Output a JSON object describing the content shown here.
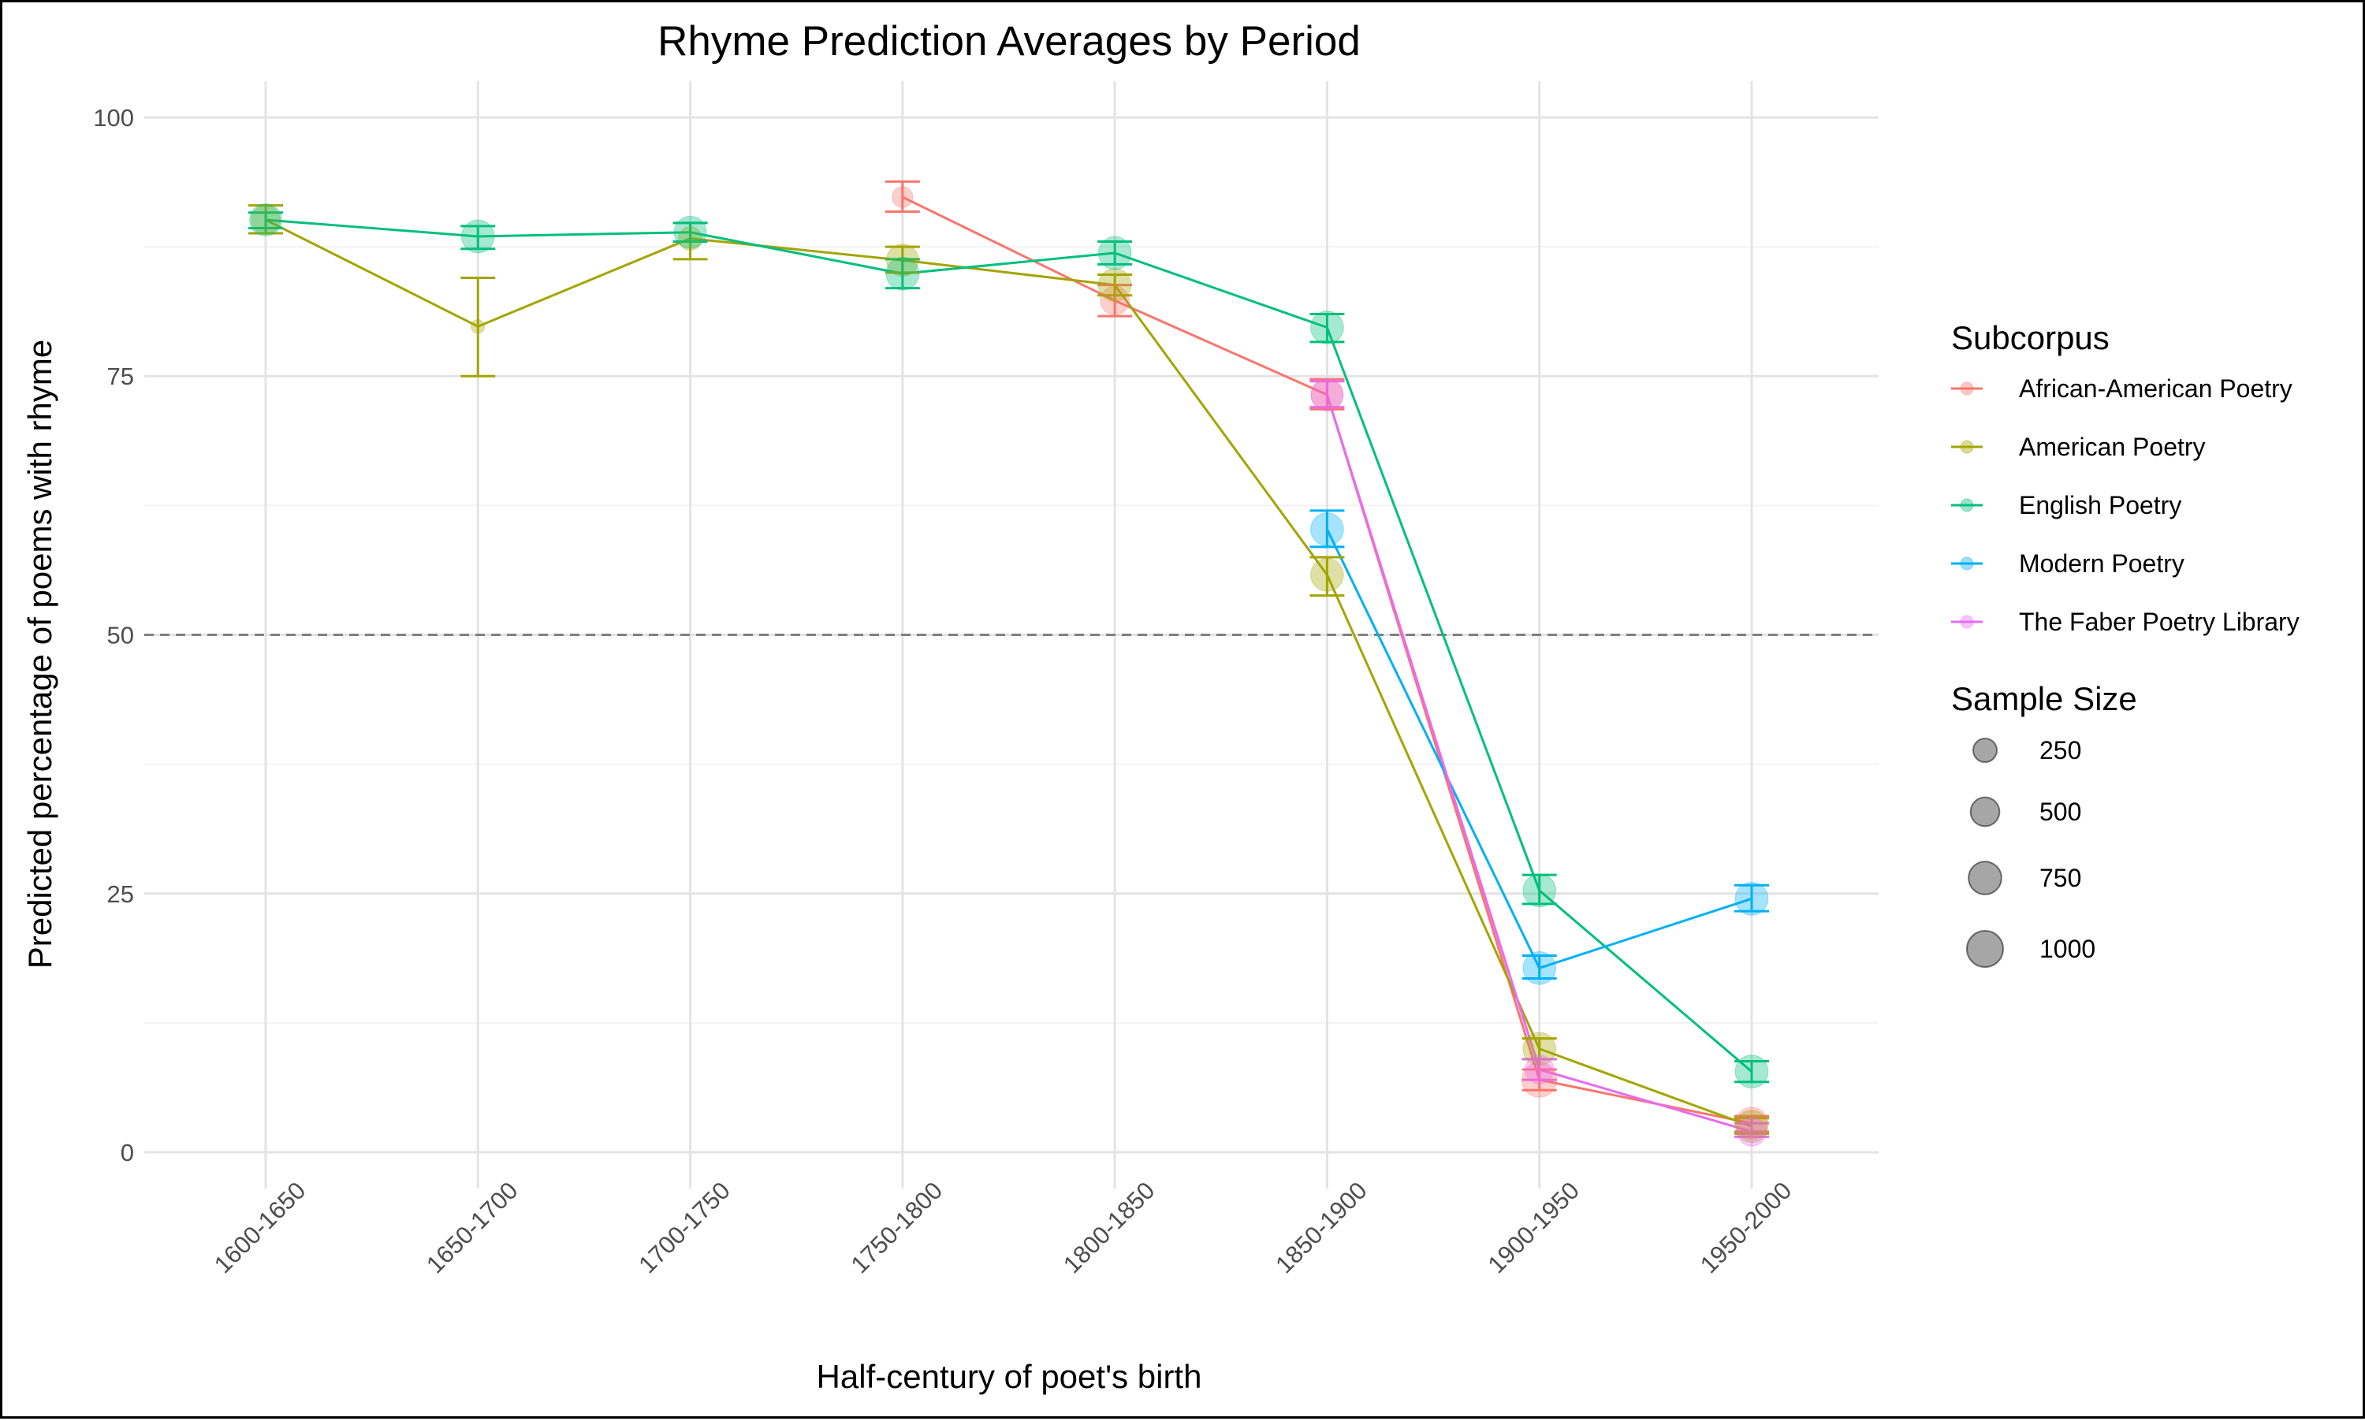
{
  "chart_data": {
    "type": "line",
    "title": "Rhyme Prediction Averages by Period",
    "xlabel": "Half-century of poet's birth",
    "ylabel": "Predicted percentage of poems with rhyme",
    "categories": [
      "1600-1650",
      "1650-1700",
      "1700-1750",
      "1750-1800",
      "1800-1850",
      "1850-1900",
      "1900-1950",
      "1950-2000"
    ],
    "ylim": [
      -3.5,
      103.5
    ],
    "yticks": [
      0,
      25,
      50,
      75,
      100
    ],
    "yticks_labels": [
      "0",
      "25",
      "50",
      "75",
      "100"
    ],
    "reference_line": {
      "y": 50,
      "style": "dashed",
      "color": "#808080"
    },
    "grid": true,
    "legend_placement": "right",
    "legend": {
      "subcorpus_title": "Subcorpus",
      "size_title": "Sample Size",
      "size_labels": [
        "250",
        "500",
        "750",
        "1000"
      ],
      "size_values": [
        250,
        500,
        750,
        1000
      ]
    },
    "series": [
      {
        "name": "African-American Poetry",
        "color": "#F8766D",
        "points": [
          {
            "x": "1750-1800",
            "y": 92.3,
            "lo": 90.9,
            "hi": 93.8,
            "n": 150
          },
          {
            "x": "1800-1850",
            "y": 82.3,
            "lo": 80.8,
            "hi": 83.8,
            "n": 500
          },
          {
            "x": "1850-1900",
            "y": 73.2,
            "lo": 71.8,
            "hi": 74.7,
            "n": 700
          },
          {
            "x": "1900-1950",
            "y": 7.0,
            "lo": 6.0,
            "hi": 8.0,
            "n": 900
          },
          {
            "x": "1950-2000",
            "y": 2.8,
            "lo": 2.0,
            "hi": 3.5,
            "n": 700
          }
        ]
      },
      {
        "name": "American Poetry",
        "color": "#A3A500",
        "points": [
          {
            "x": "1600-1650",
            "y": 90.1,
            "lo": 88.8,
            "hi": 91.5,
            "n": 500
          },
          {
            "x": "1650-1700",
            "y": 79.8,
            "lo": 75.0,
            "hi": 84.5,
            "n": 10
          },
          {
            "x": "1700-1750",
            "y": 88.3,
            "lo": 86.3,
            "hi": 89.8,
            "n": 250
          },
          {
            "x": "1750-1800",
            "y": 86.2,
            "lo": 85.0,
            "hi": 87.5,
            "n": 700
          },
          {
            "x": "1800-1850",
            "y": 83.8,
            "lo": 82.8,
            "hi": 84.8,
            "n": 750
          },
          {
            "x": "1850-1900",
            "y": 55.8,
            "lo": 53.8,
            "hi": 57.5,
            "n": 750
          },
          {
            "x": "1900-1950",
            "y": 10.0,
            "lo": 9.0,
            "hi": 11.0,
            "n": 750
          },
          {
            "x": "1950-2000",
            "y": 2.5,
            "lo": 1.8,
            "hi": 3.3,
            "n": 700
          }
        ]
      },
      {
        "name": "English Poetry",
        "color": "#00BF7D",
        "points": [
          {
            "x": "1600-1650",
            "y": 90.1,
            "lo": 89.3,
            "hi": 90.8,
            "n": 700
          },
          {
            "x": "1650-1700",
            "y": 88.5,
            "lo": 87.3,
            "hi": 89.5,
            "n": 750
          },
          {
            "x": "1700-1750",
            "y": 88.9,
            "lo": 88.0,
            "hi": 89.8,
            "n": 700
          },
          {
            "x": "1750-1800",
            "y": 84.9,
            "lo": 83.5,
            "hi": 86.3,
            "n": 750
          },
          {
            "x": "1800-1850",
            "y": 86.9,
            "lo": 85.8,
            "hi": 88.0,
            "n": 750
          },
          {
            "x": "1850-1900",
            "y": 79.7,
            "lo": 78.3,
            "hi": 81.0,
            "n": 750
          },
          {
            "x": "1900-1950",
            "y": 25.3,
            "lo": 24.0,
            "hi": 26.8,
            "n": 750
          },
          {
            "x": "1950-2000",
            "y": 7.8,
            "lo": 6.8,
            "hi": 8.8,
            "n": 750
          }
        ]
      },
      {
        "name": "Modern Poetry",
        "color": "#00B0F6",
        "points": [
          {
            "x": "1850-1900",
            "y": 60.2,
            "lo": 58.5,
            "hi": 62.0,
            "n": 750
          },
          {
            "x": "1900-1950",
            "y": 17.8,
            "lo": 16.8,
            "hi": 19.0,
            "n": 750
          },
          {
            "x": "1950-2000",
            "y": 24.5,
            "lo": 23.3,
            "hi": 25.8,
            "n": 750
          }
        ]
      },
      {
        "name": "The Faber Poetry Library",
        "color": "#E76BF3",
        "points": [
          {
            "x": "1850-1900",
            "y": 73.2,
            "lo": 72.0,
            "hi": 74.5,
            "n": 700
          },
          {
            "x": "1900-1950",
            "y": 8.0,
            "lo": 7.0,
            "hi": 9.0,
            "n": 500
          },
          {
            "x": "1950-2000",
            "y": 2.0,
            "lo": 1.5,
            "hi": 2.8,
            "n": 500
          }
        ]
      }
    ]
  }
}
